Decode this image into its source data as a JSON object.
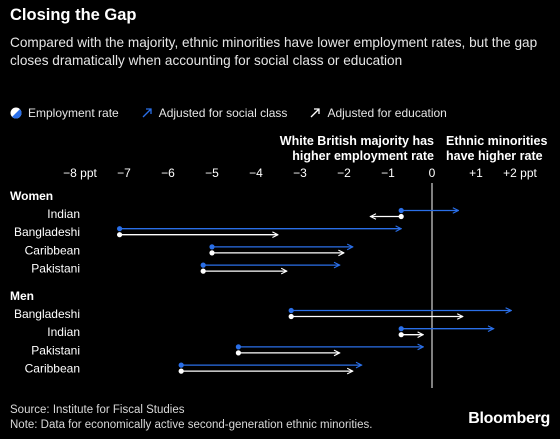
{
  "header": {
    "title": "Closing the Gap",
    "subtitle": "Compared with the majority, ethnic minorities have lower employment rates, but the gap closes dramatically when accounting for social class or education"
  },
  "legend": {
    "employment_rate": "Employment rate",
    "social_class": "Adjusted for social class",
    "education": "Adjusted for education"
  },
  "annotations": {
    "left_line1": "White British majority has",
    "left_line2": "higher employment rate",
    "right_line1": "Ethnic minorities",
    "right_line2": "have higher rate"
  },
  "footer": {
    "source": "Source: Institute for Fiscal Studies",
    "note": "Note: Data for economically active second-generation ethnic minorities.",
    "logo": "Bloomberg"
  },
  "colors": {
    "background": "#000000",
    "social_class": "#2a6fe8",
    "education": "#ffffff",
    "zero_line": "#ffffff",
    "text": "#ffffff"
  },
  "chart_data": {
    "type": "arrow-dot",
    "x_axis": {
      "range": [
        -8,
        2
      ],
      "ticks": [
        -8,
        -7,
        -6,
        -5,
        -4,
        -3,
        -2,
        -1,
        0,
        1,
        2
      ],
      "tick_labels": [
        "−8 ppt",
        "−7",
        "−6",
        "−5",
        "−4",
        "−3",
        "−2",
        "−1",
        "0",
        "+1",
        "+2 ppt"
      ]
    },
    "series_names": [
      "Employment rate",
      "Adjusted for social class",
      "Adjusted for education"
    ],
    "groups": [
      {
        "name": "Women",
        "rows": [
          {
            "label": "Indian",
            "employment_rate": -0.7,
            "social_class": 0.6,
            "education": -1.4
          },
          {
            "label": "Bangladeshi",
            "employment_rate": -7.1,
            "social_class": -0.7,
            "education": -3.5
          },
          {
            "label": "Caribbean",
            "employment_rate": -5.0,
            "social_class": -1.8,
            "education": -2.0
          },
          {
            "label": "Pakistani",
            "employment_rate": -5.2,
            "social_class": -2.1,
            "education": -3.3
          }
        ]
      },
      {
        "name": "Men",
        "rows": [
          {
            "label": "Bangladeshi",
            "employment_rate": -3.2,
            "social_class": 1.8,
            "education": 0.7
          },
          {
            "label": "Indian",
            "employment_rate": -0.7,
            "social_class": 1.4,
            "education": -0.2
          },
          {
            "label": "Pakistani",
            "employment_rate": -4.4,
            "social_class": -0.2,
            "education": -2.1
          },
          {
            "label": "Caribbean",
            "employment_rate": -5.7,
            "social_class": -1.6,
            "education": -1.8
          }
        ]
      }
    ]
  }
}
